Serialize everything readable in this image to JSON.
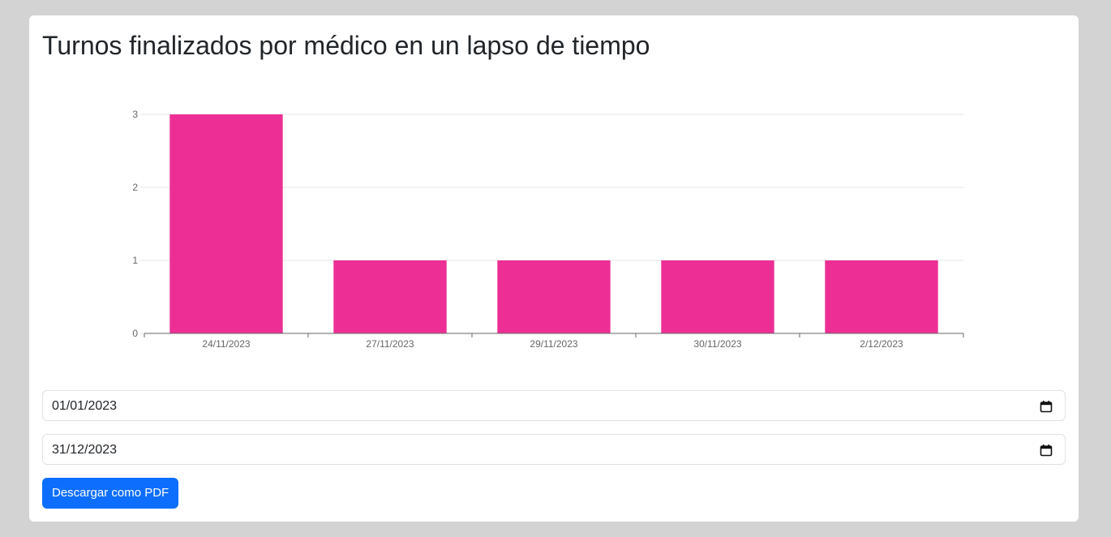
{
  "page": {
    "title": "Turnos finalizados por médico en un lapso de tiempo"
  },
  "chart_data": {
    "type": "bar",
    "categories": [
      "24/11/2023",
      "27/11/2023",
      "29/11/2023",
      "30/11/2023",
      "2/12/2023"
    ],
    "values": [
      3,
      1,
      1,
      1,
      1
    ],
    "yticks": [
      "0",
      "1",
      "2",
      "3"
    ],
    "ylim": [
      0,
      3
    ],
    "grid": true,
    "bar_color": "#ed2f95",
    "title": "",
    "xlabel": "",
    "ylabel": ""
  },
  "filters": {
    "start_date": "01/01/2023",
    "end_date": "31/12/2023"
  },
  "actions": {
    "download_pdf_label": "Descargar como PDF"
  },
  "colors": {
    "page_background": "#d3d3d3",
    "card_background": "#ffffff",
    "button_primary": "#0d6efd",
    "bar": "#ed2f95"
  },
  "icons": {
    "date_picker": "calendar-icon"
  }
}
